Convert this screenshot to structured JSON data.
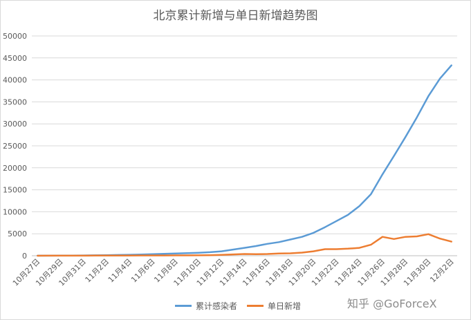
{
  "chart_data": {
    "type": "line",
    "title": "北京累计新增与单日新增趋势图",
    "xlabel": "",
    "ylabel": "",
    "ylim": [
      0,
      50000
    ],
    "yticks": [
      0,
      5000,
      10000,
      15000,
      20000,
      25000,
      30000,
      35000,
      40000,
      45000,
      50000
    ],
    "grid": true,
    "legend_position": "bottom",
    "categories": [
      "10月27日",
      "10月28日",
      "10月29日",
      "10月30日",
      "10月31日",
      "11月1日",
      "11月2日",
      "11月3日",
      "11月4日",
      "11月5日",
      "11月6日",
      "11月7日",
      "11月8日",
      "11月9日",
      "11月10日",
      "11月11日",
      "11月12日",
      "11月13日",
      "11月14日",
      "11月15日",
      "11月16日",
      "11月17日",
      "11月18日",
      "11月19日",
      "11月20日",
      "11月21日",
      "11月22日",
      "11月23日",
      "11月24日",
      "11月25日",
      "11月26日",
      "11月27日",
      "11月28日",
      "11月29日",
      "11月30日",
      "12月1日",
      "12月2日"
    ],
    "tick_labels": [
      "10月27日",
      "10月29日",
      "10月31日",
      "11月2日",
      "11月4日",
      "11月6日",
      "11月8日",
      "11月10日",
      "11月12日",
      "11月14日",
      "11月16日",
      "11月18日",
      "11月20日",
      "11月22日",
      "11月24日",
      "11月26日",
      "11月28日",
      "11月30日",
      "12月2日"
    ],
    "series": [
      {
        "name": "累计感染者",
        "color": "#5b9bd5",
        "values": [
          10,
          20,
          30,
          40,
          60,
          90,
          130,
          170,
          220,
          280,
          350,
          420,
          500,
          580,
          680,
          800,
          1000,
          1400,
          1800,
          2200,
          2700,
          3100,
          3700,
          4300,
          5200,
          6500,
          7900,
          9300,
          11300,
          14000,
          18500,
          22700,
          27000,
          31500,
          36300,
          40300,
          43300
        ]
      },
      {
        "name": "单日新增",
        "color": "#ed7d31",
        "values": [
          5,
          10,
          10,
          15,
          20,
          30,
          40,
          40,
          50,
          60,
          70,
          70,
          80,
          80,
          100,
          120,
          200,
          300,
          400,
          350,
          400,
          500,
          550,
          700,
          1000,
          1500,
          1500,
          1600,
          1800,
          2500,
          4300,
          3800,
          4300,
          4400,
          4900,
          3900,
          3200
        ]
      }
    ]
  },
  "watermark": "知乎 @GoForceX"
}
